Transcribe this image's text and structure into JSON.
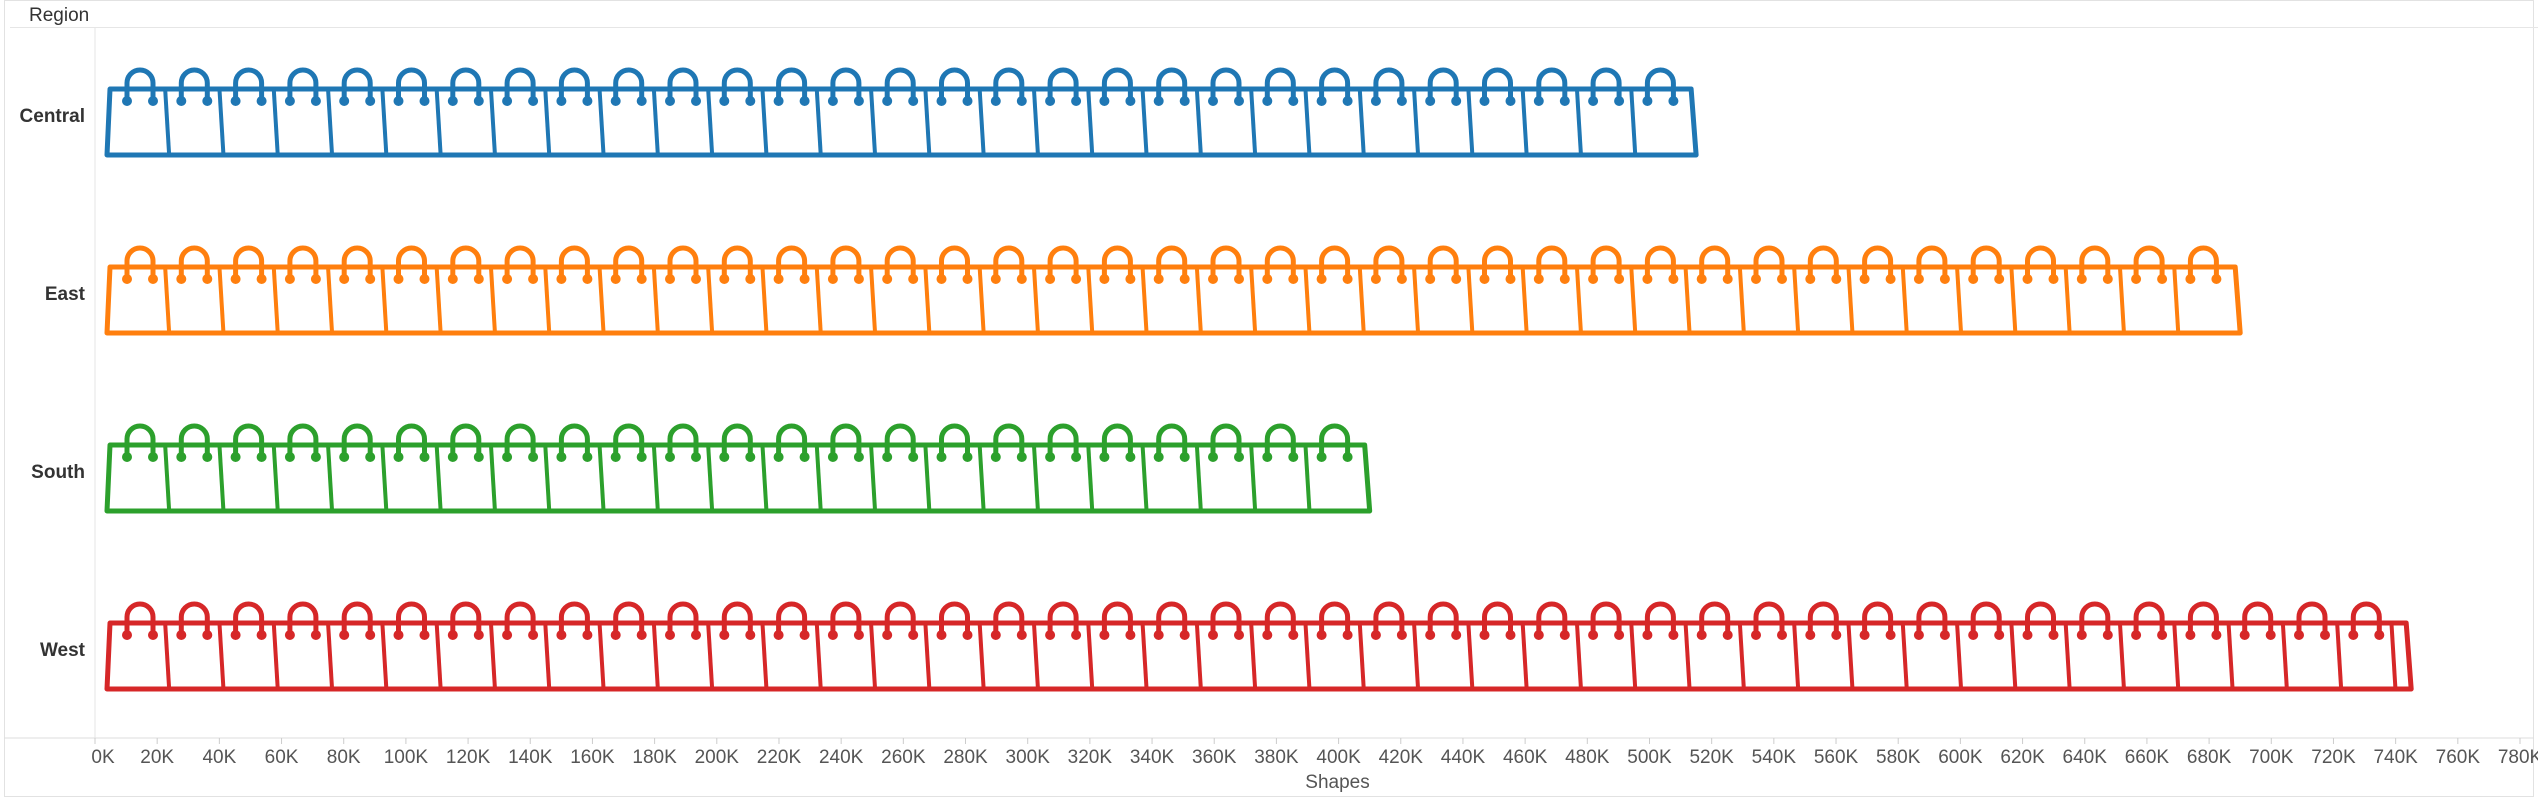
{
  "chart_data": {
    "type": "bar",
    "mark": "shapes",
    "icon": "shopping-bag-icon",
    "header_label": "Region",
    "categories": [
      "Central",
      "East",
      "South",
      "West"
    ],
    "series": [
      {
        "values": [
          515000,
          690000,
          410000,
          745000
        ]
      }
    ],
    "colors": [
      "#1f77b4",
      "#ff7f0e",
      "#2ca02c",
      "#d62728"
    ],
    "xlabel": "Shapes",
    "xlim": [
      0,
      780000
    ],
    "xticks": [
      "0K",
      "20K",
      "40K",
      "60K",
      "80K",
      "100K",
      "120K",
      "140K",
      "160K",
      "180K",
      "200K",
      "220K",
      "240K",
      "260K",
      "280K",
      "300K",
      "320K",
      "340K",
      "360K",
      "380K",
      "400K",
      "420K",
      "440K",
      "460K",
      "480K",
      "500K",
      "520K",
      "540K",
      "560K",
      "580K",
      "600K",
      "620K",
      "640K",
      "660K",
      "680K",
      "700K",
      "720K",
      "740K",
      "760K",
      "780K"
    ],
    "grid": false
  }
}
